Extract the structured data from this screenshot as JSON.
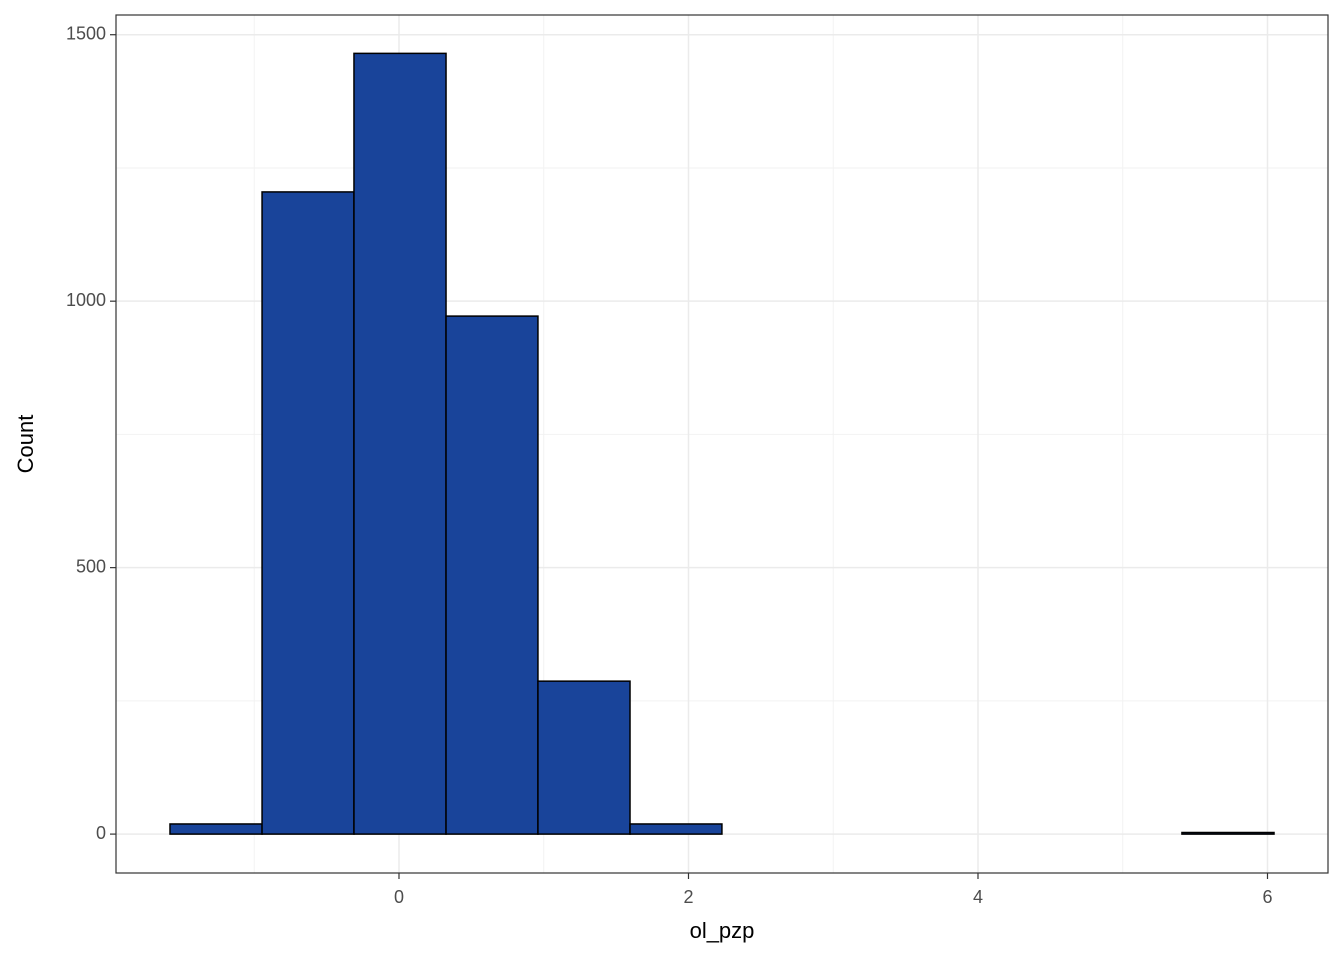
{
  "chart_data": {
    "type": "histogram",
    "xlabel": "ol_pzp",
    "ylabel": "Count",
    "bins": [
      -1.582,
      -0.946,
      -0.311,
      0.325,
      0.96,
      1.596,
      2.231,
      2.867,
      3.503,
      4.138,
      4.774,
      5.409,
      6.045
    ],
    "values": [
      19,
      1205,
      1465,
      972,
      287,
      19,
      0,
      0,
      0,
      0,
      0,
      3
    ],
    "color": "#19449a",
    "xlim": [
      -1.955,
      6.418
    ],
    "ylim": [
      -73,
      1537
    ],
    "xticks": [
      0,
      2,
      4,
      6
    ],
    "yticks": [
      0,
      500,
      1000,
      1500
    ],
    "grid": true
  }
}
